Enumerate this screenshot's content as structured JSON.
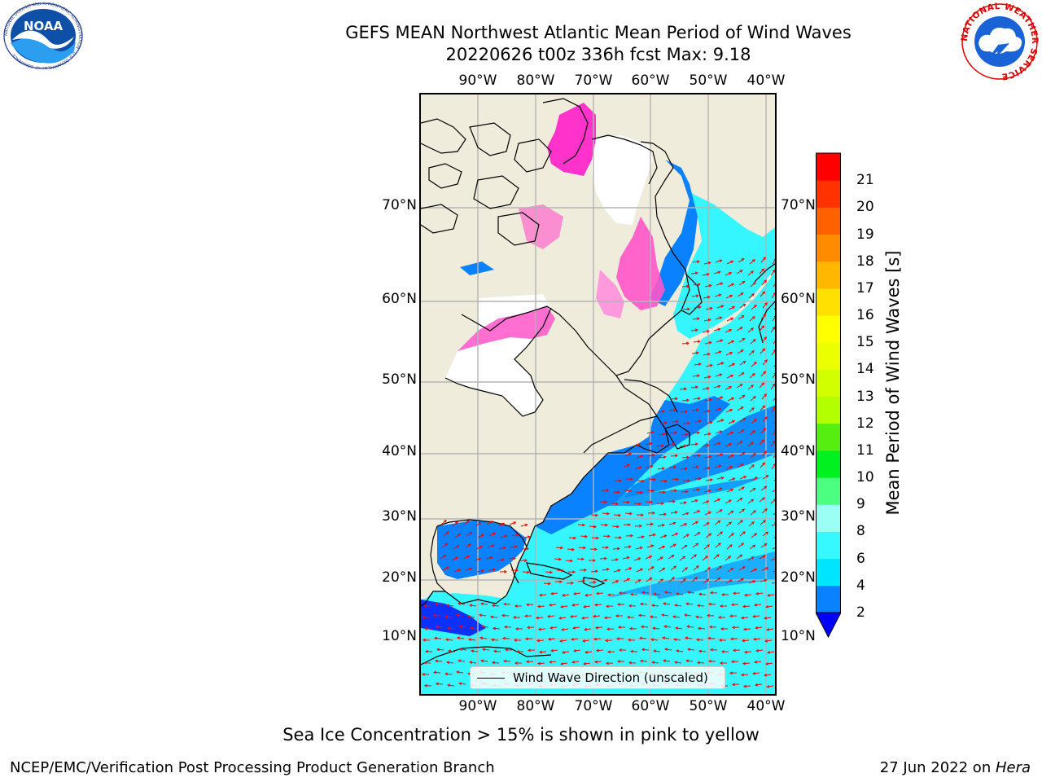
{
  "title_line1": "GEFS MEAN Northwest Atlantic Mean Period of Wind Waves",
  "title_line2": "20220626 t00z 336h fcst   Max: 9.18",
  "map": {
    "lon_labels": [
      "90°W",
      "80°W",
      "70°W",
      "60°W",
      "50°W",
      "40°W"
    ],
    "lat_labels": [
      "70°N",
      "60°N",
      "50°N",
      "40°N",
      "30°N",
      "20°N",
      "10°N"
    ],
    "legend_label": "Wind Wave Direction (unscaled)",
    "land_color": "#efecdc",
    "vector_color": "#ff0000"
  },
  "colorbar": {
    "label": "Mean Period of Wind Waves [s]",
    "ticks": [
      "2",
      "4",
      "6",
      "8",
      "9",
      "10",
      "11",
      "12",
      "13",
      "14",
      "15",
      "16",
      "17",
      "18",
      "19",
      "20",
      "21"
    ],
    "colors": [
      "#0a82ff",
      "#00e5ff",
      "#36f8ff",
      "#9bfff5",
      "#4dff80",
      "#00f020",
      "#55ee10",
      "#b3ff00",
      "#d2ff00",
      "#ecff00",
      "#ffff00",
      "#ffe000",
      "#ffb700",
      "#ff8c00",
      "#ff6000",
      "#ff3200",
      "#ff0000"
    ],
    "under_color": "#0000ff"
  },
  "footnote": "Sea Ice Concentration > 15% is shown in pink to yellow",
  "credit_left": "NCEP/EMC/Verification Post Processing Product Generation Branch",
  "credit_right_prefix": "27 Jun 2022 on ",
  "credit_right_host": "Hera",
  "logos": {
    "noaa_text": "NOAA",
    "noaa_ring_text": "NATIONAL OCEANIC AND ATMOSPHERIC ADMINISTRATION · U.S. DEPARTMENT OF COMMERCE",
    "nws_ring_text": "NATIONAL WEATHER SERVICE"
  }
}
